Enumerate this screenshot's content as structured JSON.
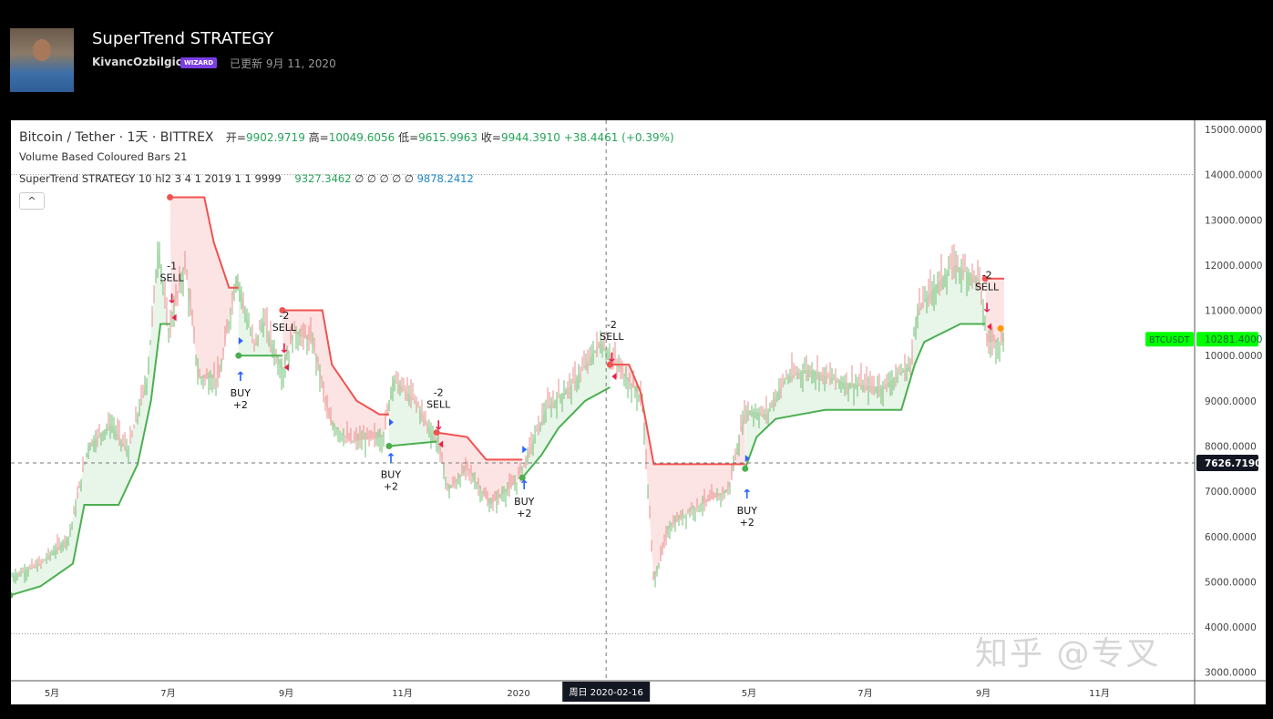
{
  "header": {
    "title": "SuperTrend STRATEGY",
    "author": "KivancOzbilgic",
    "badge": "WIZARD",
    "updated": "已更新 9月 11, 2020"
  },
  "legend": {
    "symbol": "Bitcoin / Tether · 1天 · BITTREX",
    "open_label": "开=",
    "open": "9902.9719",
    "high_label": "高=",
    "high": "10049.6056",
    "low_label": "低=",
    "low": "9615.9963",
    "close_label": "收=",
    "close": "9944.3910",
    "change": "+38.4461 (+0.39%)",
    "indicator1": "Volume Based Coloured Bars 21",
    "indicator2": "SuperTrend STRATEGY 10 hl2 3 4 1 2019 1 1 9999",
    "ind2_up": "9327.3462",
    "ind2_na": "∅ ∅ ∅ ∅ ∅",
    "ind2_dn": "9878.2412",
    "collapse": "^"
  },
  "watermark": "知乎 @专叉",
  "colors": {
    "up": "#4caf50",
    "down": "#ef5350",
    "up_fill": "#e8f5e9",
    "down_fill": "#fde4e4",
    "buy_arrow": "#2962ff",
    "sell_arrow": "#e91e4c",
    "last_price": "#00ff00"
  },
  "chart_data": {
    "type": "candlestick",
    "ylim": [
      3000,
      15200
    ],
    "yticks": [
      15000,
      14000,
      13000,
      12000,
      11000,
      10000,
      9000,
      8000,
      7000,
      6000,
      5000,
      4000,
      3000
    ],
    "ytick_labels": [
      "15000.0000",
      "14000.0000",
      "13000.0000",
      "12000.0000",
      "11000.0000",
      "10000.0000",
      "9000.0000",
      "8000.0000",
      "7000.0000",
      "6000.0000",
      "5000.0000",
      "4000.0000",
      "3000.0000"
    ],
    "xticks": [
      {
        "date": "2019-05-01",
        "label": "5月"
      },
      {
        "date": "2019-07-01",
        "label": "7月"
      },
      {
        "date": "2019-09-01",
        "label": "9月"
      },
      {
        "date": "2019-11-01",
        "label": "11月"
      },
      {
        "date": "2020-01-01",
        "label": "2020"
      },
      {
        "date": "2020-05-01",
        "label": "5月"
      },
      {
        "date": "2020-07-01",
        "label": "7月"
      },
      {
        "date": "2020-09-01",
        "label": "9月"
      },
      {
        "date": "2020-11-01",
        "label": "11月"
      }
    ],
    "crosshair": {
      "date": "2020-02-16",
      "date_label": "周日 2020-02-16",
      "price": 7626.719,
      "price_label": "7626.7190"
    },
    "last_price": {
      "symbol": "BTCUSDT",
      "value": 10281.4,
      "label": "10281.4000"
    },
    "price": [
      [
        "2019-04-09",
        5100
      ],
      [
        "2019-04-25",
        5400
      ],
      [
        "2019-05-10",
        6000
      ],
      [
        "2019-05-20",
        8000
      ],
      [
        "2019-06-01",
        8500
      ],
      [
        "2019-06-10",
        7900
      ],
      [
        "2019-06-20",
        9500
      ],
      [
        "2019-06-26",
        12500
      ],
      [
        "2019-07-01",
        10500
      ],
      [
        "2019-07-10",
        12000
      ],
      [
        "2019-07-17",
        9500
      ],
      [
        "2019-07-28",
        9500
      ],
      [
        "2019-08-06",
        11800
      ],
      [
        "2019-08-15",
        10200
      ],
      [
        "2019-08-20",
        10800
      ],
      [
        "2019-08-30",
        9600
      ],
      [
        "2019-09-05",
        10500
      ],
      [
        "2019-09-15",
        10300
      ],
      [
        "2019-09-24",
        8500
      ],
      [
        "2019-10-05",
        8100
      ],
      [
        "2019-10-22",
        8200
      ],
      [
        "2019-10-27",
        9500
      ],
      [
        "2019-11-08",
        9000
      ],
      [
        "2019-11-20",
        8000
      ],
      [
        "2019-11-25",
        7000
      ],
      [
        "2019-12-05",
        7500
      ],
      [
        "2019-12-17",
        6700
      ],
      [
        "2019-12-31",
        7200
      ],
      [
        "2020-01-15",
        8800
      ],
      [
        "2020-01-30",
        9400
      ],
      [
        "2020-02-13",
        10300
      ],
      [
        "2020-02-25",
        9600
      ],
      [
        "2020-03-06",
        9000
      ],
      [
        "2020-03-12",
        5000
      ],
      [
        "2020-03-20",
        6200
      ],
      [
        "2020-04-01",
        6600
      ],
      [
        "2020-04-20",
        7000
      ],
      [
        "2020-04-29",
        8800
      ],
      [
        "2020-05-10",
        8700
      ],
      [
        "2020-05-20",
        9500
      ],
      [
        "2020-06-01",
        9700
      ],
      [
        "2020-06-20",
        9400
      ],
      [
        "2020-07-10",
        9300
      ],
      [
        "2020-07-25",
        9800
      ],
      [
        "2020-07-28",
        11000
      ],
      [
        "2020-08-10",
        11700
      ],
      [
        "2020-08-17",
        12000
      ],
      [
        "2020-08-30",
        11700
      ],
      [
        "2020-09-03",
        10300
      ],
      [
        "2020-09-11",
        10300
      ]
    ],
    "supertrend": [
      {
        "trend": "up",
        "points": [
          [
            "2019-04-09",
            4700
          ],
          [
            "2019-04-25",
            4900
          ],
          [
            "2019-05-12",
            5400
          ],
          [
            "2019-05-18",
            6700
          ],
          [
            "2019-06-05",
            6700
          ],
          [
            "2019-06-15",
            7600
          ],
          [
            "2019-06-22",
            9000
          ],
          [
            "2019-06-27",
            10700
          ],
          [
            "2019-07-02",
            10700
          ]
        ]
      },
      {
        "trend": "down",
        "points": [
          [
            "2019-07-02",
            13500
          ],
          [
            "2019-07-20",
            13500
          ],
          [
            "2019-07-25",
            12500
          ],
          [
            "2019-08-02",
            11500
          ],
          [
            "2019-08-07",
            11500
          ]
        ]
      },
      {
        "trend": "up",
        "points": [
          [
            "2019-08-07",
            10000
          ],
          [
            "2019-08-30",
            10000
          ]
        ]
      },
      {
        "trend": "down",
        "points": [
          [
            "2019-08-30",
            11000
          ],
          [
            "2019-09-20",
            11000
          ],
          [
            "2019-09-25",
            9800
          ],
          [
            "2019-10-08",
            9000
          ],
          [
            "2019-10-20",
            8700
          ],
          [
            "2019-10-25",
            8700
          ]
        ]
      },
      {
        "trend": "up",
        "points": [
          [
            "2019-10-25",
            8000
          ],
          [
            "2019-11-19",
            8100
          ]
        ]
      },
      {
        "trend": "down",
        "points": [
          [
            "2019-11-19",
            8300
          ],
          [
            "2019-12-05",
            8200
          ],
          [
            "2019-12-15",
            7700
          ],
          [
            "2020-01-03",
            7700
          ]
        ]
      },
      {
        "trend": "up",
        "points": [
          [
            "2020-01-03",
            7300
          ],
          [
            "2020-01-13",
            7800
          ],
          [
            "2020-01-22",
            8400
          ],
          [
            "2020-02-05",
            9000
          ],
          [
            "2020-02-18",
            9300
          ]
        ]
      },
      {
        "trend": "down",
        "points": [
          [
            "2020-02-18",
            9800
          ],
          [
            "2020-02-28",
            9800
          ],
          [
            "2020-03-05",
            9200
          ],
          [
            "2020-03-12",
            7600
          ],
          [
            "2020-04-29",
            7600
          ]
        ]
      },
      {
        "trend": "up",
        "points": [
          [
            "2020-04-29",
            7500
          ],
          [
            "2020-05-05",
            8200
          ],
          [
            "2020-05-15",
            8600
          ],
          [
            "2020-06-10",
            8800
          ],
          [
            "2020-07-20",
            8800
          ],
          [
            "2020-07-27",
            9800
          ],
          [
            "2020-08-01",
            10300
          ],
          [
            "2020-08-20",
            10700
          ],
          [
            "2020-09-02",
            10700
          ]
        ]
      },
      {
        "trend": "down",
        "points": [
          [
            "2020-09-02",
            11700
          ],
          [
            "2020-09-12",
            11700
          ]
        ]
      }
    ],
    "signals": [
      {
        "date": "2019-07-02",
        "type": "sell",
        "label": "-1\nSELL",
        "value": 11000
      },
      {
        "date": "2019-08-07",
        "type": "buy",
        "label": "BUY\n+2",
        "value": 9600
      },
      {
        "date": "2019-08-30",
        "type": "sell",
        "label": "-2\nSELL",
        "value": 9900
      },
      {
        "date": "2019-10-25",
        "type": "buy",
        "label": "BUY\n+2",
        "value": 7800
      },
      {
        "date": "2019-11-19",
        "type": "sell",
        "label": "-2\nSELL",
        "value": 8200
      },
      {
        "date": "2020-01-03",
        "type": "buy",
        "label": "BUY\n+2",
        "value": 7200
      },
      {
        "date": "2020-02-18",
        "type": "sell",
        "label": "-2\nSELL",
        "value": 9700
      },
      {
        "date": "2020-04-29",
        "type": "buy",
        "label": "BUY\n+2",
        "value": 7000
      },
      {
        "date": "2020-09-02",
        "type": "sell",
        "label": "-2\nSELL",
        "value": 10800
      }
    ]
  }
}
